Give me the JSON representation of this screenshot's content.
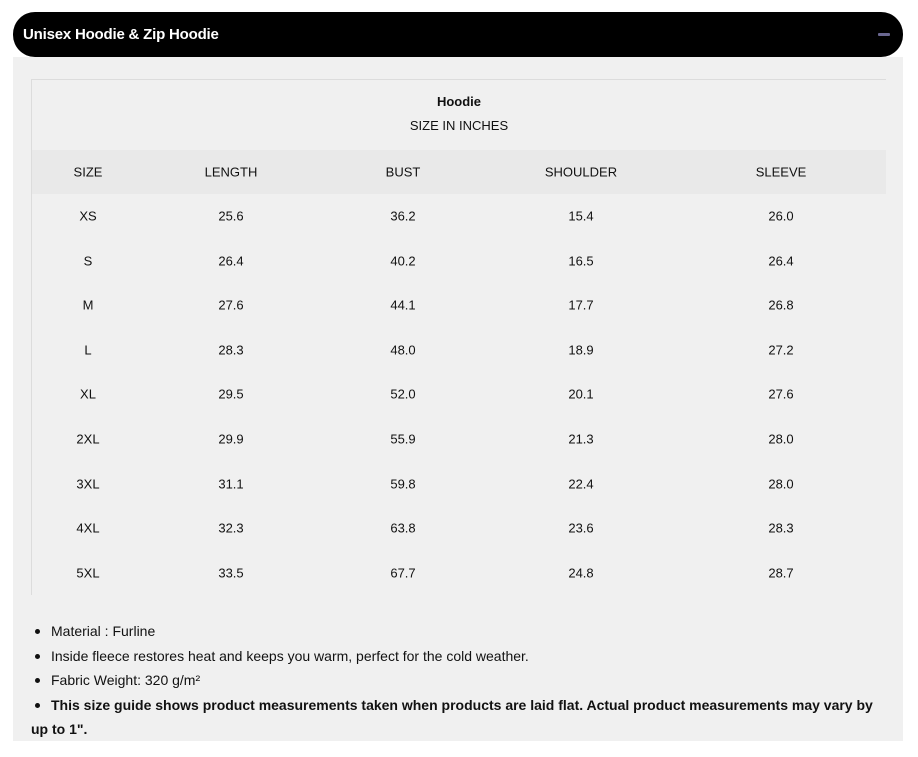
{
  "header": {
    "title": "Unisex Hoodie & Zip Hoodie",
    "toggle_icon": "minus-icon"
  },
  "table": {
    "title": "Hoodie",
    "subtitle": "SIZE IN INCHES",
    "columns": [
      "SIZE",
      "LENGTH",
      "BUST",
      "SHOULDER",
      "SLEEVE"
    ],
    "rows": [
      [
        "XS",
        "25.6",
        "36.2",
        "15.4",
        "26.0"
      ],
      [
        "S",
        "26.4",
        "40.2",
        "16.5",
        "26.4"
      ],
      [
        "M",
        "27.6",
        "44.1",
        "17.7",
        "26.8"
      ],
      [
        "L",
        "28.3",
        "48.0",
        "18.9",
        "27.2"
      ],
      [
        "XL",
        "29.5",
        "52.0",
        "20.1",
        "27.6"
      ],
      [
        "2XL",
        "29.9",
        "55.9",
        "21.3",
        "28.0"
      ],
      [
        "3XL",
        "31.1",
        "59.8",
        "22.4",
        "28.0"
      ],
      [
        "4XL",
        "32.3",
        "63.8",
        "23.6",
        "28.3"
      ],
      [
        "5XL",
        "33.5",
        "67.7",
        "24.8",
        "28.7"
      ]
    ]
  },
  "notes": [
    "Material : Furline",
    "Inside fleece restores heat and keeps you warm, perfect for the cold weather.",
    "Fabric Weight: 320 g/m²",
    "This size guide shows product measurements taken when products are laid flat. Actual product measurements may vary by up to 1\"."
  ]
}
